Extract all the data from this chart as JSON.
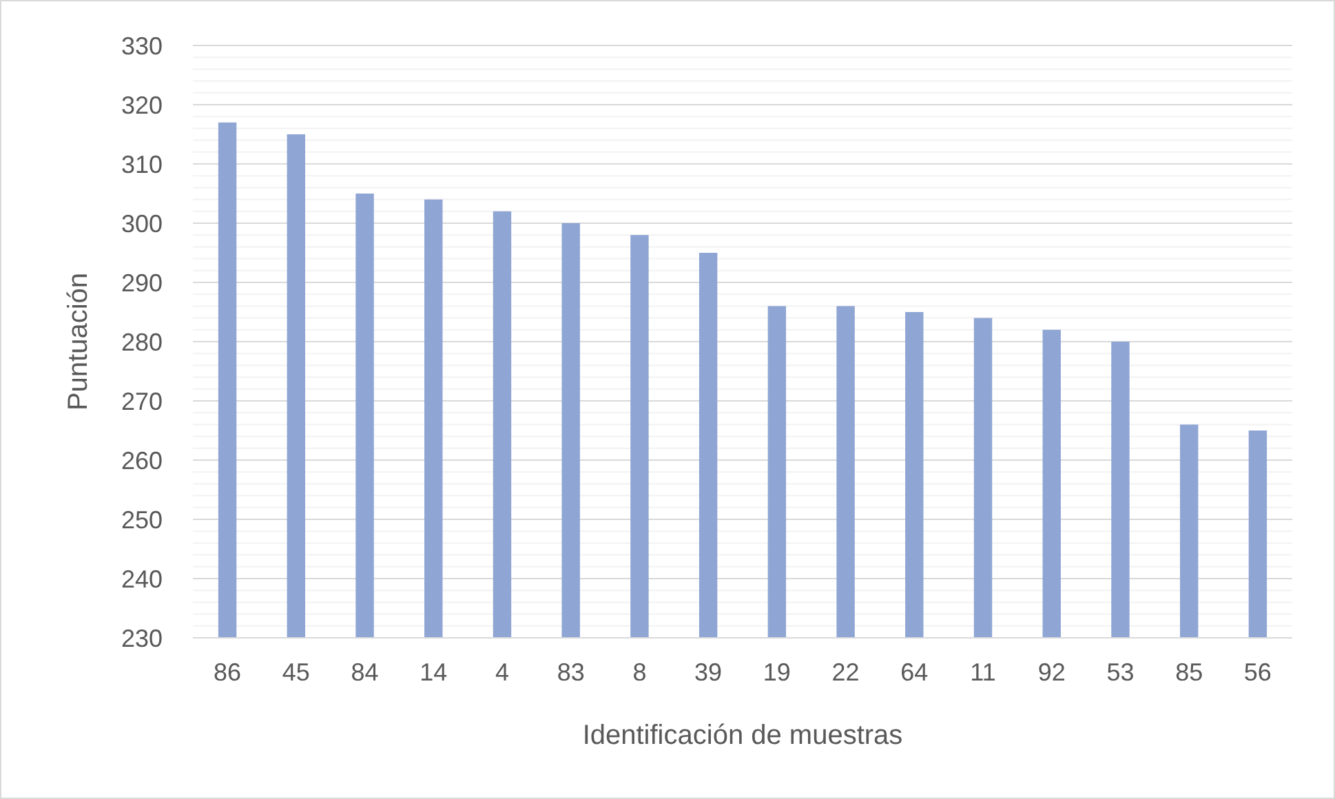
{
  "chart_data": {
    "type": "bar",
    "xlabel": "Identificación de muestras",
    "ylabel": "Puntuación",
    "categories": [
      "86",
      "45",
      "84",
      "14",
      "4",
      "83",
      "8",
      "39",
      "19",
      "22",
      "64",
      "11",
      "92",
      "53",
      "85",
      "56"
    ],
    "values": [
      317,
      315,
      305,
      304,
      302,
      300,
      298,
      295,
      286,
      286,
      285,
      284,
      282,
      280,
      266,
      265
    ],
    "color": "#8fa5d4",
    "ylim": [
      230,
      330
    ],
    "yticks": [
      230,
      {
        "value": 232,
        "label": null
      },
      {
        "value": 234,
        "label": null
      },
      {
        "value": 236,
        "label": null
      },
      {
        "value": 238,
        "label": null
      },
      240,
      {
        "value": 242,
        "label": null
      },
      {
        "value": 244,
        "label": null
      },
      {
        "value": 246,
        "label": null
      },
      {
        "value": 248,
        "label": null
      },
      250,
      {
        "value": 252,
        "label": null
      },
      {
        "value": 254,
        "label": null
      },
      {
        "value": 256,
        "label": null
      },
      {
        "value": 258,
        "label": null
      },
      260,
      {
        "value": 262,
        "label": null
      },
      {
        "value": 264,
        "label": null
      },
      {
        "value": 266,
        "label": null
      },
      {
        "value": 268,
        "label": null
      },
      270,
      {
        "value": 272,
        "label": null
      },
      {
        "value": 274,
        "label": null
      },
      {
        "value": 276,
        "label": null
      },
      {
        "value": 278,
        "label": null
      },
      280,
      {
        "value": 282,
        "label": null
      },
      {
        "value": 284,
        "label": null
      },
      {
        "value": 286,
        "label": null
      },
      {
        "value": 288,
        "label": null
      },
      290,
      {
        "value": 292,
        "label": null
      },
      {
        "value": 294,
        "label": null
      },
      {
        "value": 296,
        "label": null
      },
      {
        "value": 298,
        "label": null
      },
      300,
      {
        "value": 302,
        "label": null
      },
      {
        "value": 304,
        "label": null
      },
      {
        "value": 306,
        "label": null
      },
      {
        "value": 308,
        "label": null
      },
      310,
      {
        "value": 312,
        "label": null
      },
      {
        "value": 314,
        "label": null
      },
      {
        "value": 316,
        "label": null
      },
      {
        "value": 318,
        "label": null
      },
      320,
      {
        "value": 322,
        "label": null
      },
      {
        "value": 324,
        "label": null
      },
      {
        "value": 326,
        "label": null
      },
      {
        "value": 328,
        "label": null
      },
      330
    ],
    "grid": "y"
  }
}
